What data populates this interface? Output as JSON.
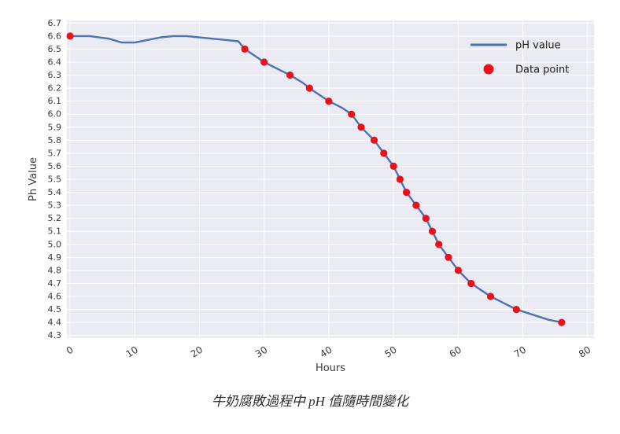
{
  "chart_data": {
    "type": "line",
    "title": "",
    "caption": "牛奶腐敗過程中 pH 值隨時間變化",
    "xlabel": "Hours",
    "ylabel": "Ph Value",
    "x_range": [
      -0.5,
      81
    ],
    "y_range": [
      4.28,
      6.72
    ],
    "x_ticks": [
      0,
      10,
      20,
      30,
      40,
      50,
      60,
      70,
      80
    ],
    "y_ticks": [
      4.3,
      4.4,
      4.5,
      4.6,
      4.7,
      4.8,
      4.9,
      5.0,
      5.1,
      5.2,
      5.3,
      5.4,
      5.5,
      5.6,
      5.7,
      5.8,
      5.9,
      6.0,
      6.1,
      6.2,
      6.3,
      6.4,
      6.5,
      6.6,
      6.7
    ],
    "grid": true,
    "colors": {
      "plot_bg": "#eaeaf2",
      "grid": "#ffffff",
      "line": "#4c72b0",
      "point": "#e8121a"
    },
    "legend": {
      "position": "upper right",
      "items": [
        {
          "label": "pH value",
          "marker": "line",
          "color": "#4c72b0"
        },
        {
          "label": "Data point",
          "marker": "point",
          "color": "#e8121a"
        }
      ]
    },
    "series": [
      {
        "name": "pH value",
        "type": "line",
        "color": "#4c72b0",
        "x": [
          0,
          3,
          6,
          8,
          10,
          12,
          14,
          16,
          18,
          20,
          22,
          24,
          26,
          27,
          30,
          32,
          34,
          36,
          37,
          40,
          42,
          43.5,
          45,
          47,
          48.5,
          50,
          51,
          52,
          53.5,
          55,
          56,
          57,
          58.5,
          60,
          62,
          63.5,
          65,
          67,
          69,
          71.5,
          74,
          76
        ],
        "y": [
          6.6,
          6.6,
          6.58,
          6.55,
          6.55,
          6.57,
          6.59,
          6.6,
          6.6,
          6.59,
          6.58,
          6.57,
          6.56,
          6.5,
          6.4,
          6.35,
          6.3,
          6.24,
          6.2,
          6.1,
          6.05,
          6.0,
          5.9,
          5.8,
          5.7,
          5.6,
          5.5,
          5.4,
          5.3,
          5.2,
          5.1,
          5.0,
          4.9,
          4.8,
          4.7,
          4.65,
          4.6,
          4.55,
          4.5,
          4.46,
          4.42,
          4.4
        ]
      },
      {
        "name": "Data point",
        "type": "scatter",
        "color": "#e8121a",
        "x": [
          0,
          27,
          30,
          34,
          37,
          40,
          43.5,
          45,
          47,
          48.5,
          50,
          51,
          52,
          53.5,
          55,
          56,
          57,
          58.5,
          60,
          62,
          65,
          69,
          76
        ],
        "y": [
          6.6,
          6.5,
          6.4,
          6.3,
          6.2,
          6.1,
          6.0,
          5.9,
          5.8,
          5.7,
          5.6,
          5.5,
          5.4,
          5.3,
          5.2,
          5.1,
          5.0,
          4.9,
          4.8,
          4.7,
          4.6,
          4.5,
          4.4
        ]
      }
    ]
  }
}
